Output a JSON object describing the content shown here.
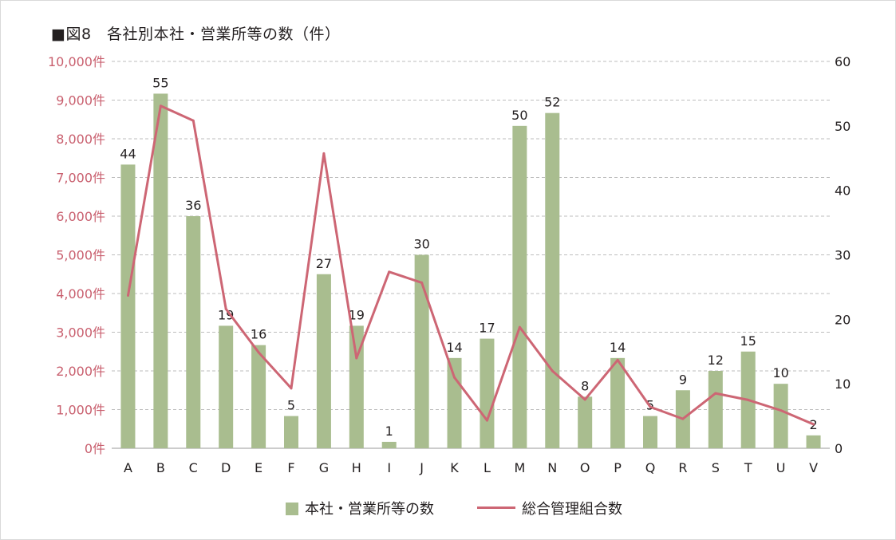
{
  "chart_data": {
    "type": "bar+line",
    "title": "■図8　各社別本社・営業所等の数（件）",
    "categories": [
      "A",
      "B",
      "C",
      "D",
      "E",
      "F",
      "G",
      "H",
      "I",
      "J",
      "K",
      "L",
      "M",
      "N",
      "O",
      "P",
      "Q",
      "R",
      "S",
      "T",
      "U",
      "V"
    ],
    "left_axis": {
      "ylim": [
        0,
        10000
      ],
      "tick_labels": [
        "0件",
        "1,000件",
        "2,000件",
        "3,000件",
        "4,000件",
        "5,000件",
        "6,000件",
        "7,000件",
        "8,000件",
        "9,000件",
        "10,000件"
      ],
      "color": "#c9606f"
    },
    "right_axis": {
      "ylim": [
        0,
        60
      ],
      "tick_labels": [
        "0",
        "10",
        "20",
        "30",
        "40",
        "50",
        "60"
      ]
    },
    "grid": true,
    "legend_placement": "bottom-center",
    "series": [
      {
        "name": "本社・営業所等の数",
        "type": "bar",
        "axis": "right",
        "color": "#a9bd8f",
        "values": [
          44,
          55,
          36,
          19,
          16,
          5,
          27,
          19,
          1,
          30,
          14,
          17,
          50,
          52,
          8,
          14,
          5,
          9,
          12,
          15,
          10,
          2
        ],
        "data_labels": [
          "44",
          "55",
          "36",
          "19",
          "16",
          "5",
          "27",
          "19",
          "1",
          "30",
          "14",
          "17",
          "50",
          "52",
          "8",
          "14",
          "5",
          "9",
          "12",
          "15",
          "10",
          "2"
        ]
      },
      {
        "name": "総合管理組合数",
        "type": "line",
        "axis": "left",
        "color": "#cd6674",
        "values": [
          3950,
          8850,
          8470,
          3600,
          2480,
          1550,
          7620,
          2330,
          4560,
          4280,
          1830,
          720,
          3130,
          2000,
          1260,
          2280,
          1070,
          760,
          1420,
          1250,
          980,
          620
        ]
      }
    ]
  }
}
